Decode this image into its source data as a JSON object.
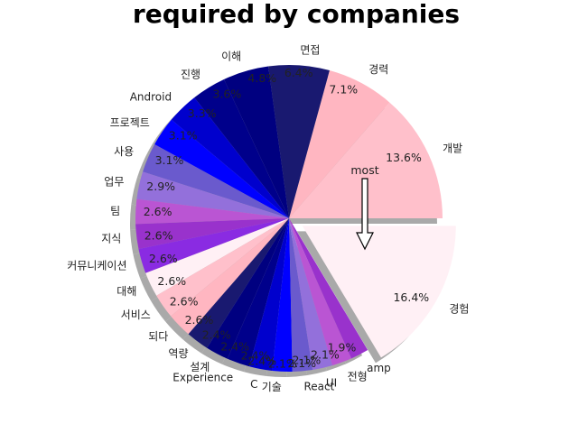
{
  "chart_data": {
    "type": "pie",
    "title": "required by companies",
    "annotation": "most",
    "start_angle_deg": 0,
    "direction": "counterclockwise",
    "shadow": true,
    "slices": [
      {
        "label": "개발",
        "value": 13.6,
        "pct_label": "13.6%",
        "color": "#ffc0cb"
      },
      {
        "label": "경력",
        "value": 7.1,
        "pct_label": "7.1%",
        "color": "#ffb6c1"
      },
      {
        "label": "면접",
        "value": 6.4,
        "pct_label": "6.4%",
        "color": "#191970"
      },
      {
        "label": "이해",
        "value": 4.8,
        "pct_label": "4.8%",
        "color": "#000080"
      },
      {
        "label": "진행",
        "value": 3.6,
        "pct_label": "3.6%",
        "color": "#00008b"
      },
      {
        "label": "Android",
        "value": 3.3,
        "pct_label": "3.3%",
        "color": "#0000cd"
      },
      {
        "label": "프로젝트",
        "value": 3.1,
        "pct_label": "3.1%",
        "color": "#0000ff"
      },
      {
        "label": "사용",
        "value": 3.1,
        "pct_label": "3.1%",
        "color": "#6a5acd"
      },
      {
        "label": "업무",
        "value": 2.9,
        "pct_label": "2.9%",
        "color": "#9370db"
      },
      {
        "label": "팀",
        "value": 2.6,
        "pct_label": "2.6%",
        "color": "#ba55d3"
      },
      {
        "label": "지식",
        "value": 2.6,
        "pct_label": "2.6%",
        "color": "#9932cc"
      },
      {
        "label": "커뮤니케이션",
        "value": 2.6,
        "pct_label": "2.6%",
        "color": "#8a2be2"
      },
      {
        "label": "대해",
        "value": 2.6,
        "pct_label": "2.6%",
        "color": "#fff0f5"
      },
      {
        "label": "서비스",
        "value": 2.6,
        "pct_label": "2.6%",
        "color": "#ffc0cb"
      },
      {
        "label": "되다",
        "value": 2.6,
        "pct_label": "2.6%",
        "color": "#ffb6c1"
      },
      {
        "label": "역량",
        "value": 2.4,
        "pct_label": "2.4%",
        "color": "#191970"
      },
      {
        "label": "설계",
        "value": 2.4,
        "pct_label": "2.4%",
        "color": "#000080"
      },
      {
        "label": "Experience",
        "value": 2.4,
        "pct_label": "2.4%",
        "color": "#00008b"
      },
      {
        "label": "C",
        "value": 2.4,
        "pct_label": "2.4%",
        "color": "#0000cd"
      },
      {
        "label": "기술",
        "value": 2.1,
        "pct_label": "2.1%",
        "color": "#0000ff"
      },
      {
        "label": "React",
        "value": 2.1,
        "pct_label": "2.1%",
        "color": "#6a5acd"
      },
      {
        "label": "UI",
        "value": 2.1,
        "pct_label": "2.1%",
        "color": "#9370db"
      },
      {
        "label": "전형",
        "value": 2.1,
        "pct_label": "2.1%",
        "color": "#ba55d3"
      },
      {
        "label": "amp",
        "value": 1.9,
        "pct_label": "1.9%",
        "color": "#9932cc"
      },
      {
        "label": "경험",
        "value": 16.4,
        "pct_label": "16.4%",
        "color": "#fff0f5",
        "exploded": true
      }
    ]
  }
}
